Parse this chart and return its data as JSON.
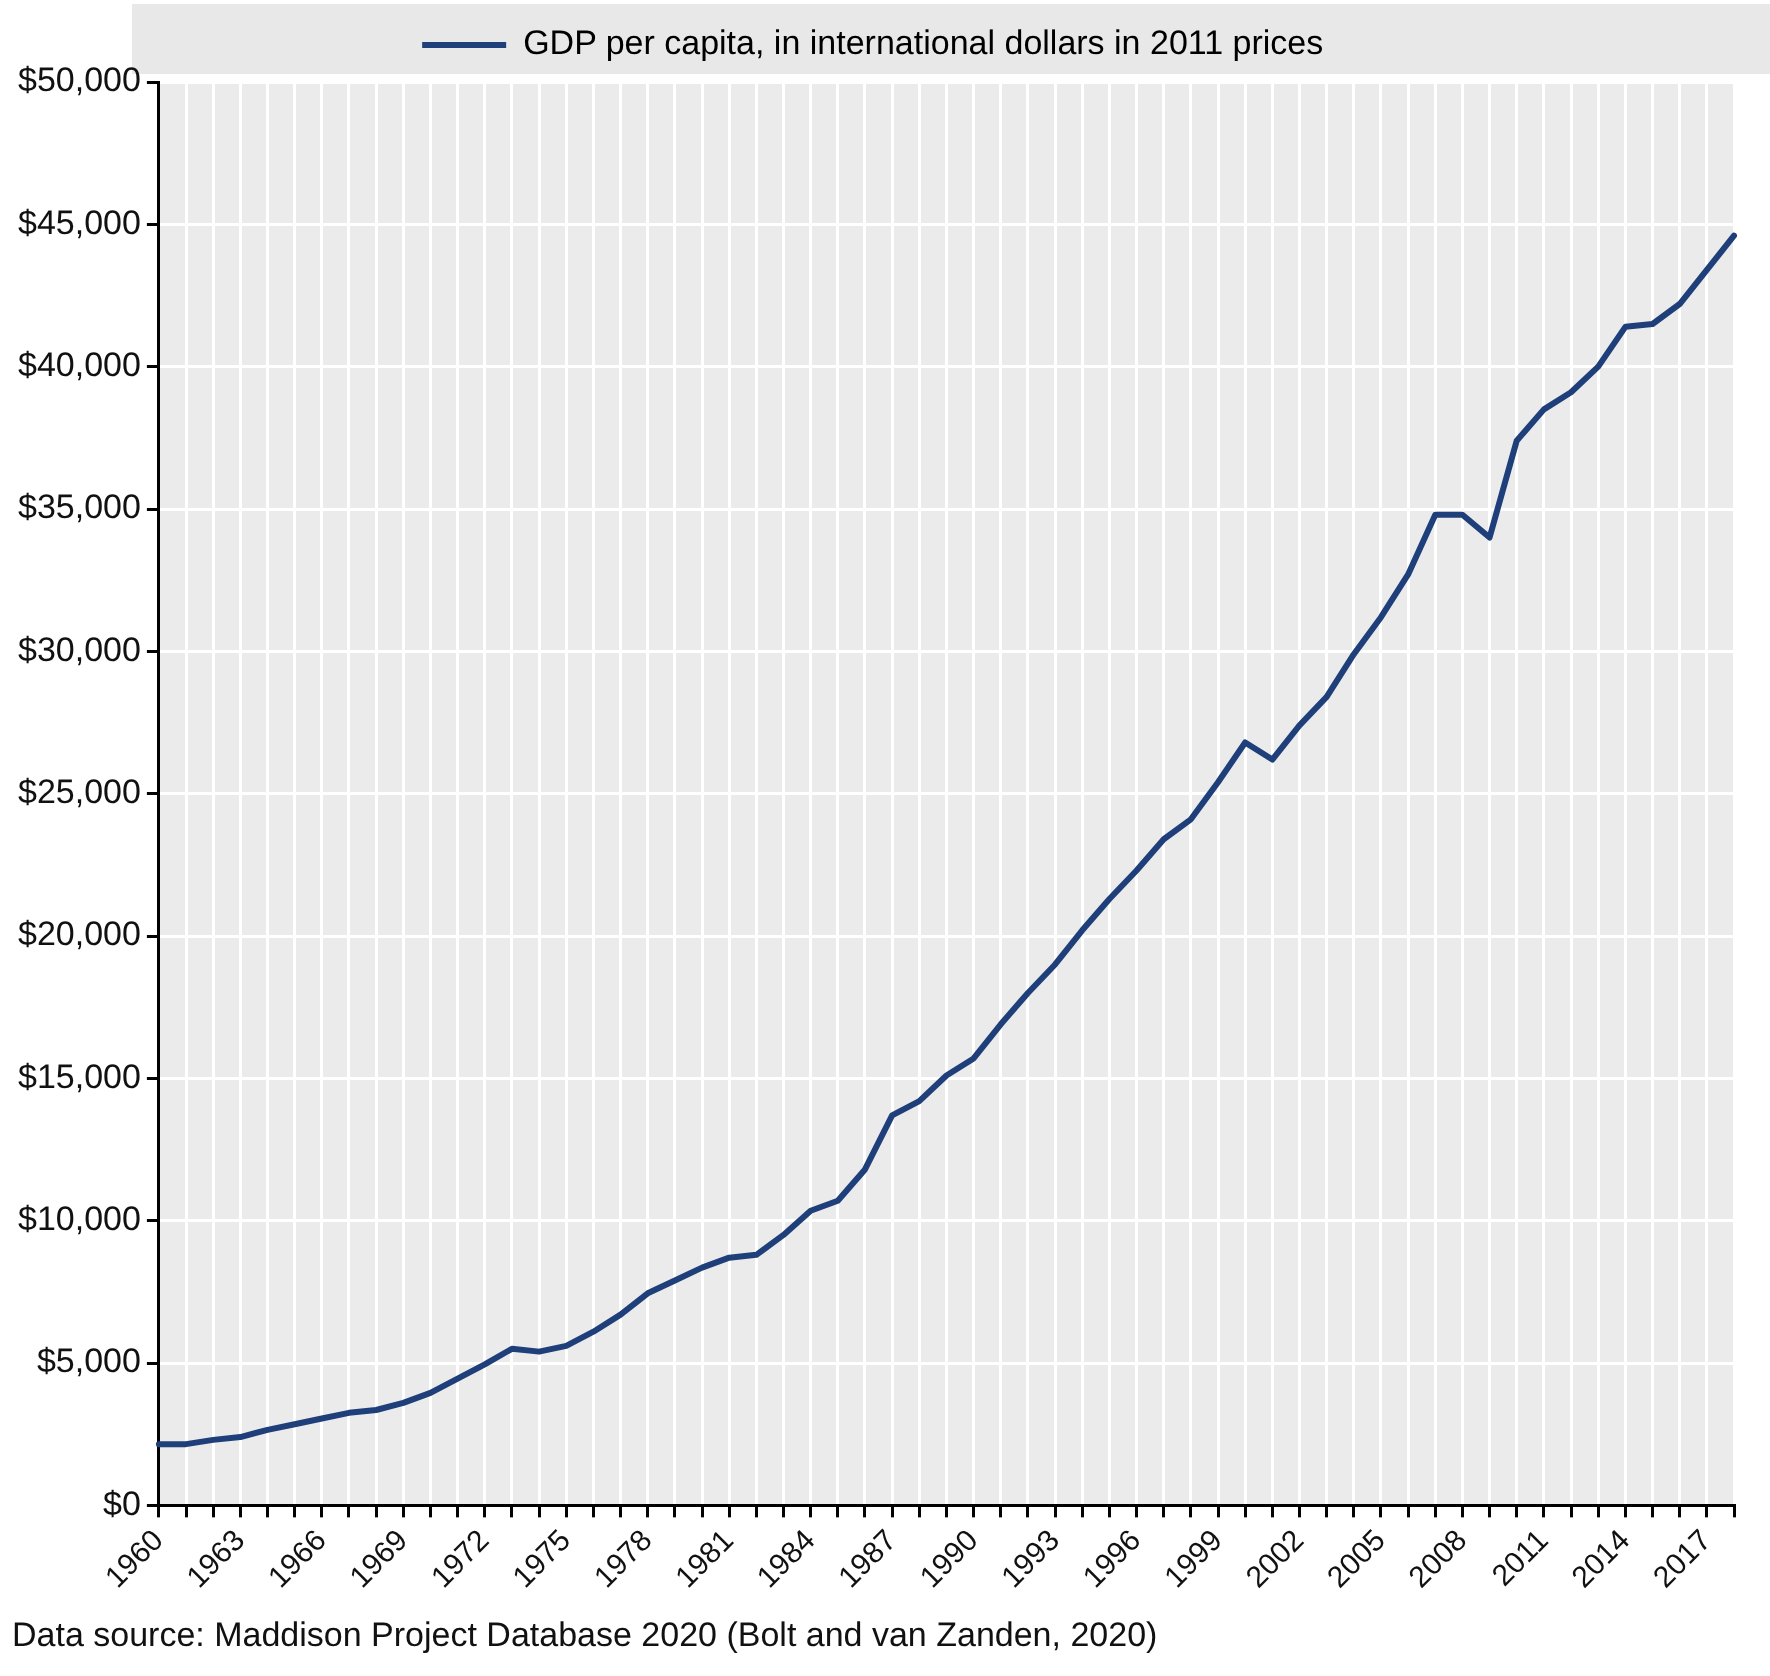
{
  "chart_data": {
    "type": "line",
    "categories": [
      "1960",
      null,
      null,
      "1963",
      null,
      null,
      "1966",
      null,
      null,
      "1969",
      null,
      null,
      "1972",
      null,
      null,
      "1975",
      null,
      null,
      "1978",
      null,
      null,
      "1981",
      null,
      null,
      "1984",
      null,
      null,
      "1987",
      null,
      null,
      "1990",
      null,
      null,
      "1993",
      null,
      null,
      "1996",
      null,
      null,
      "1999",
      null,
      null,
      "2002",
      null,
      null,
      "2005",
      null,
      null,
      "2008",
      null,
      null,
      "2011",
      null,
      null,
      "2014",
      null,
      null,
      "2017",
      null
    ],
    "series": [
      {
        "name": "GDP per capita, in international dollars in 2011 prices",
        "color": "#1f3f7a",
        "values": [
          2150,
          2150,
          2300,
          2400,
          2650,
          2850,
          3050,
          3250,
          3350,
          3600,
          3950,
          4450,
          4950,
          5500,
          5400,
          5600,
          6100,
          6700,
          7450,
          7900,
          8350,
          8700,
          8800,
          9500,
          10350,
          10700,
          11800,
          13700,
          14200,
          15100,
          15700,
          16900,
          18000,
          19000,
          20200,
          21300,
          22300,
          23400,
          24100,
          25400,
          26800,
          26200,
          27400,
          28400,
          29900,
          31200,
          32700,
          34800,
          34800,
          34000,
          37400,
          38500,
          39100,
          40000,
          41400,
          41500,
          42200,
          43400,
          44600
        ]
      }
    ],
    "ylim": [
      0,
      50000
    ],
    "yticks": [
      {
        "value": 0,
        "label": "$0"
      },
      {
        "value": 5000,
        "label": "$5,000"
      },
      {
        "value": 10000,
        "label": "$10,000"
      },
      {
        "value": 15000,
        "label": "$15,000"
      },
      {
        "value": 20000,
        "label": "$20,000"
      },
      {
        "value": 25000,
        "label": "$25,000"
      },
      {
        "value": 30000,
        "label": "$30,000"
      },
      {
        "value": 35000,
        "label": "$35,000"
      },
      {
        "value": 40000,
        "label": "$40,000"
      },
      {
        "value": 45000,
        "label": "$45,000"
      },
      {
        "value": 50000,
        "label": "$50,000"
      }
    ],
    "grid": true,
    "legend": "top",
    "marker": "none",
    "line_style": "solid",
    "annotations": [
      "Data source: Maddison Project Database 2020 (Bolt and van Zanden, 2020)"
    ]
  }
}
